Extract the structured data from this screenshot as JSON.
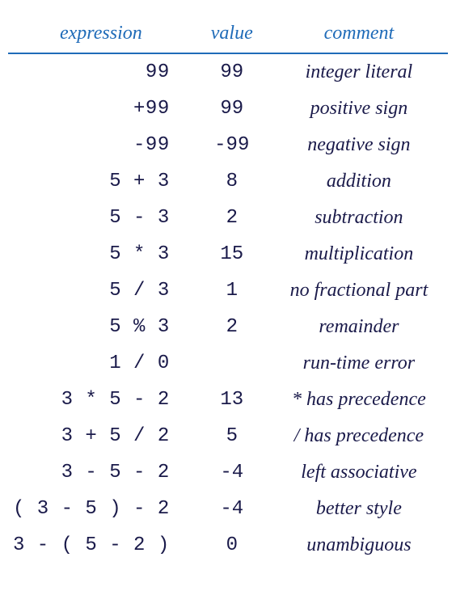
{
  "headers": {
    "expression": "expression",
    "value": "value",
    "comment": "comment"
  },
  "rows": [
    {
      "expression": "99",
      "value": "99",
      "comment": "integer literal"
    },
    {
      "expression": "+99",
      "value": "99",
      "comment": "positive sign"
    },
    {
      "expression": "-99",
      "value": "-99",
      "comment": "negative sign"
    },
    {
      "expression": "5 + 3",
      "value": "8",
      "comment": "addition"
    },
    {
      "expression": "5 - 3",
      "value": "2",
      "comment": "subtraction"
    },
    {
      "expression": "5 * 3",
      "value": "15",
      "comment": "multiplication"
    },
    {
      "expression": "5 / 3",
      "value": "1",
      "comment": "no fractional part"
    },
    {
      "expression": "5 % 3",
      "value": "2",
      "comment": "remainder"
    },
    {
      "expression": "1 / 0",
      "value": "",
      "comment": "run-time error"
    },
    {
      "expression": "3 * 5 - 2",
      "value": "13",
      "comment": "* has precedence"
    },
    {
      "expression": "3 + 5 / 2",
      "value": "5",
      "comment": "/ has precedence"
    },
    {
      "expression": "3 - 5 - 2",
      "value": "-4",
      "comment": "left associative"
    },
    {
      "expression": "( 3 - 5 ) - 2",
      "value": "-4",
      "comment": "better style"
    },
    {
      "expression": "3 - ( 5 - 2 )",
      "value": "0",
      "comment": "unambiguous"
    }
  ],
  "style": {
    "header_color": "#1f6bb8",
    "header_border_color": "#1f6bb8",
    "text_color": "#1a1a4a",
    "background_color": "#ffffff",
    "header_fontsize": 24,
    "body_fontsize": 24,
    "expr_font": "monospace",
    "value_font": "monospace",
    "comment_font_style": "italic",
    "col_widths_pct": [
      40,
      18,
      42
    ]
  }
}
